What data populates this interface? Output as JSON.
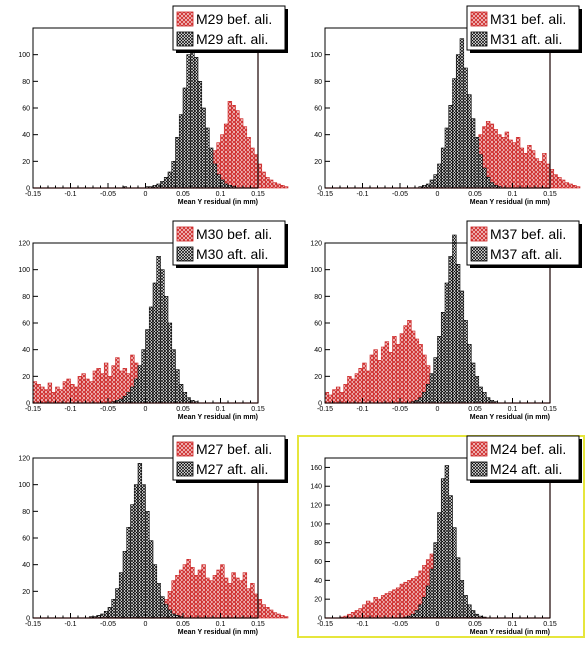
{
  "chart_data": [
    {
      "type": "bar",
      "xlabel": "Mean Y residual (in mm)",
      "xlim": [
        -0.15,
        0.15
      ],
      "ylim": [
        0,
        120
      ],
      "x_ticks": [
        "-0.15",
        "-0.1",
        "-0.05",
        "0",
        "0.05",
        "0.1",
        "0.15"
      ],
      "y_ticks": [
        "0",
        "20",
        "40",
        "60",
        "80",
        "100"
      ],
      "bins_x_start": -0.15,
      "bin_width": 0.005,
      "series": [
        {
          "name": "M29 bef. ali.",
          "color": "#cc2222",
          "values": [
            0,
            0,
            0,
            0,
            0,
            0,
            0,
            0,
            0,
            0,
            0,
            0,
            0,
            0,
            0,
            0,
            0,
            0,
            0,
            0,
            0,
            0,
            0,
            0,
            0,
            0,
            0,
            0,
            0,
            0,
            0,
            0,
            0,
            0,
            0,
            0,
            0,
            0,
            0,
            0,
            0,
            0,
            0,
            1,
            2,
            5,
            10,
            22,
            28,
            34,
            40,
            48,
            65,
            62,
            58,
            52,
            46,
            38,
            30,
            25,
            18,
            12,
            8,
            6,
            4,
            3,
            2,
            1,
            0,
            0
          ]
        },
        {
          "name": "M29 aft. ali.",
          "color": "#000000",
          "values": [
            0,
            0,
            0,
            0,
            0,
            0,
            0,
            0,
            0,
            0,
            0,
            0,
            0,
            0,
            0,
            0,
            0,
            0,
            0,
            0,
            0,
            0,
            0,
            0,
            1,
            0,
            0,
            0,
            0,
            0,
            1,
            1,
            2,
            3,
            5,
            8,
            12,
            20,
            38,
            55,
            75,
            100,
            113,
            98,
            80,
            60,
            45,
            30,
            18,
            10,
            6,
            3,
            2,
            1,
            0,
            0,
            0,
            0,
            0,
            0,
            0,
            0,
            0,
            0,
            0,
            0,
            0,
            0,
            0,
            0
          ]
        }
      ],
      "legend": [
        "M29 bef. ali.",
        "M29 aft. ali."
      ]
    },
    {
      "type": "bar",
      "xlabel": "Mean Y residual (in mm)",
      "xlim": [
        -0.15,
        0.15
      ],
      "ylim": [
        0,
        120
      ],
      "x_ticks": [
        "-0.15",
        "-0.1",
        "-0.05",
        "0",
        "0.05",
        "0.1",
        "0.15"
      ],
      "y_ticks": [
        "0",
        "20",
        "40",
        "60",
        "80",
        "100"
      ],
      "bins_x_start": -0.15,
      "bin_width": 0.005,
      "series": [
        {
          "name": "M31 bef. ali.",
          "color": "#cc2222",
          "values": [
            0,
            0,
            0,
            0,
            0,
            0,
            0,
            0,
            0,
            0,
            0,
            0,
            0,
            0,
            0,
            0,
            0,
            0,
            0,
            0,
            0,
            0,
            0,
            0,
            0,
            0,
            0,
            0,
            0,
            0,
            0,
            0,
            0,
            1,
            2,
            4,
            8,
            12,
            18,
            25,
            32,
            40,
            46,
            50,
            48,
            44,
            40,
            38,
            42,
            36,
            34,
            38,
            30,
            26,
            32,
            28,
            22,
            20,
            26,
            18,
            14,
            10,
            8,
            6,
            4,
            3,
            2,
            1,
            0,
            0
          ]
        },
        {
          "name": "M31 aft. ali.",
          "color": "#000000",
          "values": [
            0,
            0,
            0,
            0,
            0,
            0,
            0,
            0,
            0,
            0,
            0,
            0,
            0,
            0,
            0,
            0,
            0,
            0,
            0,
            0,
            0,
            0,
            0,
            0,
            0,
            1,
            2,
            3,
            6,
            10,
            18,
            30,
            45,
            62,
            82,
            100,
            112,
            90,
            70,
            52,
            38,
            25,
            15,
            8,
            4,
            2,
            1,
            0,
            0,
            0,
            0,
            0,
            0,
            0,
            0,
            0,
            0,
            0,
            0,
            0,
            0,
            0,
            0,
            0,
            0,
            0,
            0,
            0,
            0,
            0
          ]
        }
      ],
      "legend": [
        "M31 bef. ali.",
        "M31 aft. ali."
      ]
    },
    {
      "type": "bar",
      "xlabel": "Mean Y residual (in mm)",
      "xlim": [
        -0.15,
        0.15
      ],
      "ylim": [
        0,
        120
      ],
      "x_ticks": [
        "-0.15",
        "-0.1",
        "-0.05",
        "0",
        "0.05",
        "0.1",
        "0.15"
      ],
      "y_ticks": [
        "0",
        "20",
        "40",
        "60",
        "80",
        "100",
        "120"
      ],
      "bins_x_start": -0.15,
      "bin_width": 0.005,
      "series": [
        {
          "name": "M30 bef. ali.",
          "color": "#cc2222",
          "values": [
            16,
            14,
            12,
            10,
            15,
            8,
            12,
            10,
            16,
            18,
            14,
            12,
            20,
            22,
            18,
            16,
            24,
            26,
            22,
            30,
            20,
            28,
            34,
            24,
            26,
            22,
            36,
            30,
            20,
            16,
            12,
            8,
            6,
            4,
            3,
            2,
            1,
            0,
            0,
            0,
            0,
            0,
            0,
            0,
            0,
            0,
            0,
            0,
            0,
            0,
            0,
            0,
            0,
            0,
            0,
            0,
            0,
            0,
            0,
            0,
            0,
            0,
            0,
            0,
            0,
            0,
            0,
            0,
            0,
            0
          ]
        },
        {
          "name": "M30 aft. ali.",
          "color": "#000000",
          "values": [
            0,
            0,
            0,
            0,
            0,
            0,
            0,
            0,
            0,
            0,
            0,
            0,
            0,
            0,
            0,
            0,
            0,
            0,
            0,
            0,
            0,
            1,
            2,
            3,
            5,
            8,
            12,
            18,
            28,
            40,
            55,
            72,
            90,
            110,
            100,
            80,
            60,
            40,
            25,
            14,
            8,
            4,
            2,
            1,
            0,
            0,
            0,
            0,
            0,
            0,
            0,
            0,
            0,
            0,
            0,
            0,
            0,
            0,
            0,
            0,
            0,
            0,
            0,
            0,
            0,
            0,
            0,
            0,
            0,
            0
          ]
        }
      ],
      "legend": [
        "M30 bef. ali.",
        "M30 aft. ali."
      ]
    },
    {
      "type": "bar",
      "xlabel": "Mean Y residual (in mm)",
      "xlim": [
        -0.15,
        0.15
      ],
      "ylim": [
        0,
        120
      ],
      "x_ticks": [
        "-0.15",
        "-0.1",
        "-0.05",
        "0",
        "0.05",
        "0.1",
        "0.15"
      ],
      "y_ticks": [
        "0",
        "20",
        "40",
        "60",
        "80",
        "100",
        "120"
      ],
      "bins_x_start": -0.15,
      "bin_width": 0.005,
      "series": [
        {
          "name": "M37 bef. ali.",
          "color": "#cc2222",
          "values": [
            8,
            6,
            10,
            12,
            8,
            14,
            20,
            18,
            22,
            26,
            30,
            24,
            36,
            40,
            32,
            42,
            46,
            38,
            50,
            44,
            52,
            58,
            62,
            54,
            48,
            44,
            36,
            28,
            20,
            12,
            8,
            4,
            2,
            1,
            0,
            0,
            0,
            0,
            0,
            0,
            0,
            0,
            0,
            0,
            0,
            0,
            0,
            0,
            0,
            0,
            0,
            0,
            0,
            0,
            0,
            0,
            0,
            0,
            0,
            0,
            0,
            0,
            0,
            0,
            0,
            0,
            0,
            0,
            0,
            0
          ]
        },
        {
          "name": "M37 aft. ali.",
          "color": "#000000",
          "values": [
            0,
            0,
            0,
            0,
            0,
            0,
            0,
            0,
            0,
            0,
            0,
            0,
            0,
            0,
            0,
            0,
            0,
            0,
            0,
            0,
            0,
            0,
            0,
            1,
            2,
            4,
            8,
            14,
            22,
            34,
            50,
            68,
            90,
            110,
            126,
            104,
            84,
            62,
            44,
            30,
            20,
            12,
            8,
            4,
            2,
            1,
            0,
            0,
            0,
            0,
            0,
            0,
            0,
            0,
            0,
            0,
            0,
            0,
            0,
            0,
            0,
            0,
            0,
            0,
            0,
            0,
            0,
            0,
            0,
            0
          ]
        }
      ],
      "legend": [
        "M37 bef. ali.",
        "M37 aft. ali."
      ]
    },
    {
      "type": "bar",
      "xlabel": "Mean Y residual (in mm)",
      "xlim": [
        -0.15,
        0.15
      ],
      "ylim": [
        0,
        120
      ],
      "x_ticks": [
        "-0.15",
        "-0.1",
        "-0.05",
        "0",
        "0.05",
        "0.1",
        "0.15"
      ],
      "y_ticks": [
        "0",
        "20",
        "40",
        "60",
        "80",
        "100",
        "120"
      ],
      "bins_x_start": -0.15,
      "bin_width": 0.005,
      "series": [
        {
          "name": "M27 bef. ali.",
          "color": "#cc2222",
          "values": [
            0,
            0,
            0,
            0,
            0,
            0,
            0,
            0,
            0,
            0,
            0,
            0,
            0,
            0,
            0,
            0,
            0,
            0,
            0,
            0,
            0,
            0,
            0,
            0,
            0,
            0,
            0,
            0,
            0,
            0,
            0,
            1,
            2,
            4,
            8,
            14,
            20,
            28,
            32,
            36,
            40,
            44,
            38,
            32,
            36,
            40,
            30,
            28,
            32,
            36,
            40,
            30,
            26,
            34,
            30,
            28,
            34,
            22,
            26,
            18,
            14,
            10,
            8,
            6,
            4,
            3,
            2,
            1,
            0,
            0
          ]
        },
        {
          "name": "M27 aft. ali.",
          "color": "#000000",
          "values": [
            0,
            0,
            0,
            0,
            0,
            0,
            0,
            0,
            0,
            0,
            0,
            0,
            0,
            0,
            0,
            1,
            1,
            2,
            3,
            5,
            8,
            14,
            22,
            34,
            50,
            68,
            85,
            100,
            116,
            100,
            80,
            58,
            40,
            26,
            16,
            10,
            6,
            3,
            2,
            1,
            0,
            0,
            0,
            0,
            0,
            0,
            0,
            0,
            0,
            0,
            0,
            0,
            0,
            0,
            0,
            0,
            0,
            0,
            0,
            0,
            0,
            0,
            0,
            0,
            0,
            0,
            0,
            0,
            0,
            0
          ]
        }
      ],
      "legend": [
        "M27 bef. ali.",
        "M27 aft. ali."
      ]
    },
    {
      "type": "bar",
      "xlabel": "Mean Y residual (in mm)",
      "xlim": [
        -0.15,
        0.15
      ],
      "ylim": [
        0,
        170
      ],
      "x_ticks": [
        "-0.15",
        "-0.1",
        "-0.05",
        "0",
        "0.05",
        "0.1",
        "0.15"
      ],
      "y_ticks": [
        "0",
        "20",
        "40",
        "60",
        "80",
        "100",
        "120",
        "140",
        "160"
      ],
      "bins_x_start": -0.15,
      "bin_width": 0.005,
      "series": [
        {
          "name": "M24 bef. ali.",
          "color": "#cc2222",
          "values": [
            0,
            0,
            0,
            0,
            1,
            2,
            4,
            6,
            8,
            10,
            14,
            18,
            16,
            22,
            20,
            24,
            26,
            28,
            30,
            32,
            36,
            38,
            40,
            42,
            44,
            50,
            56,
            62,
            68,
            74,
            60,
            46,
            32,
            20,
            12,
            6,
            3,
            1,
            0,
            0,
            0,
            0,
            0,
            0,
            0,
            0,
            0,
            0,
            0,
            0,
            0,
            0,
            0,
            0,
            0,
            0,
            0,
            0,
            0,
            0,
            0,
            0,
            0,
            0,
            0,
            0,
            0,
            0,
            0,
            0
          ]
        },
        {
          "name": "M24 aft. ali.",
          "color": "#000000",
          "values": [
            0,
            0,
            0,
            0,
            0,
            0,
            0,
            0,
            0,
            0,
            0,
            0,
            0,
            0,
            0,
            0,
            0,
            0,
            0,
            0,
            0,
            1,
            2,
            4,
            8,
            14,
            22,
            34,
            52,
            80,
            112,
            148,
            162,
            130,
            96,
            64,
            40,
            24,
            14,
            8,
            4,
            2,
            1,
            0,
            0,
            0,
            0,
            0,
            0,
            0,
            0,
            0,
            0,
            0,
            0,
            0,
            0,
            0,
            0,
            0,
            0,
            0,
            0,
            0,
            0,
            0,
            0,
            0,
            0,
            0
          ]
        }
      ],
      "legend": [
        "M24 bef. ali.",
        "M24 aft. ali."
      ]
    }
  ]
}
